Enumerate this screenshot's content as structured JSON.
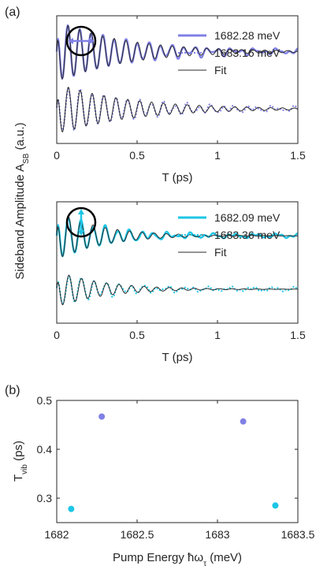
{
  "panel_labels": {
    "a": "(a)",
    "b": "(b)"
  },
  "shared_ylabel": {
    "main": "Sideband Amplitude A",
    "sub": "SB",
    "unit": " (a.u.)"
  },
  "colors": {
    "purple": "#8080e6",
    "cyan": "#1ec6e6",
    "fit": "#2a2a2a"
  },
  "chart_data": [
    {
      "type": "line",
      "panel": "a-top",
      "icon": "horizontal-polarization-arrow-icon",
      "xlabel": "T (ps)",
      "xlim": [
        0,
        1.5
      ],
      "xticks": [
        "0",
        "0.5",
        "1",
        "1.5"
      ],
      "yticks": [],
      "series": [
        {
          "name": "1682.28 meV",
          "style": "solid",
          "color": "#8080e6",
          "offset": 0.72,
          "amp": 0.24,
          "period_ps": 0.072,
          "decay_ps": 0.42
        },
        {
          "name": "1683.16 meV",
          "style": "dotted",
          "color": "#8080e6",
          "offset": 0.27,
          "amp": 0.2,
          "period_ps": 0.074,
          "decay_ps": 0.45
        },
        {
          "name": "Fit",
          "style": "solid-thin",
          "color": "#2a2a2a"
        }
      ]
    },
    {
      "type": "line",
      "panel": "a-bottom",
      "icon": "vertical-polarization-arrow-icon",
      "xlabel": "T (ps)",
      "xlim": [
        0,
        1.5
      ],
      "xticks": [
        "0",
        "0.5",
        "1",
        "1.5"
      ],
      "yticks": [],
      "series": [
        {
          "name": "1682.09 meV",
          "style": "solid",
          "color": "#1ec6e6",
          "offset": 0.72,
          "amp": 0.2,
          "period_ps": 0.076,
          "decay_ps": 0.28
        },
        {
          "name": "1683.36 meV",
          "style": "dotted",
          "color": "#1ec6e6",
          "offset": 0.28,
          "amp": 0.15,
          "period_ps": 0.078,
          "decay_ps": 0.29
        },
        {
          "name": "Fit",
          "style": "solid-thin",
          "color": "#2a2a2a"
        }
      ]
    },
    {
      "type": "scatter",
      "panel": "b",
      "xlabel": "Pump Energy ħω",
      "xlabel_sub": "τ",
      "xlabel_unit": " (meV)",
      "ylabel": "T",
      "ylabel_sub": "vib",
      "ylabel_unit": " (ps)",
      "xlim": [
        1682,
        1683.5
      ],
      "ylim": [
        0.25,
        0.5
      ],
      "xticks": [
        "1682",
        "1682.5",
        "1683",
        "1683.5"
      ],
      "yticks": [
        "0.3",
        "0.4",
        "0.5"
      ],
      "points": [
        {
          "x": 1682.28,
          "y": 0.467,
          "color": "#8080e6"
        },
        {
          "x": 1683.16,
          "y": 0.457,
          "color": "#8080e6"
        },
        {
          "x": 1682.09,
          "y": 0.278,
          "color": "#1ec6e6"
        },
        {
          "x": 1683.36,
          "y": 0.285,
          "color": "#1ec6e6"
        }
      ]
    }
  ]
}
